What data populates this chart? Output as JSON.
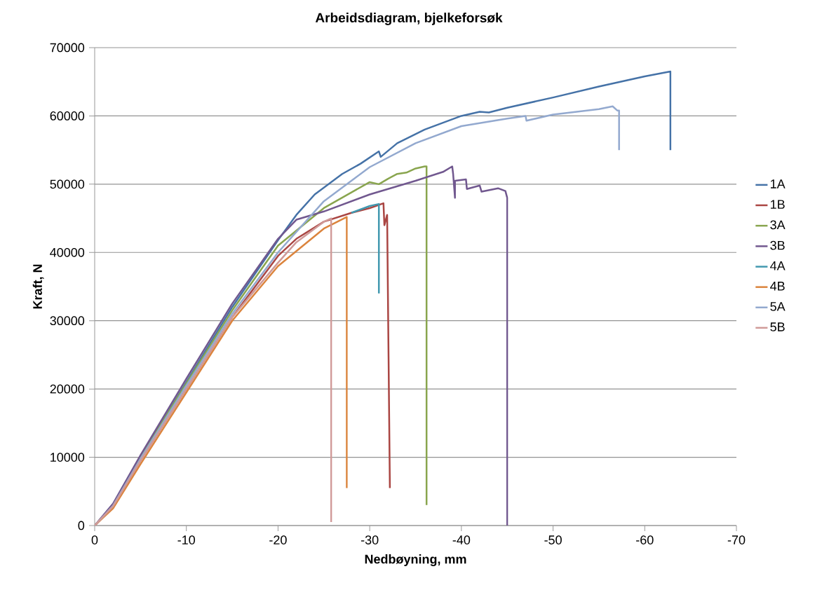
{
  "chart_data": {
    "type": "line",
    "title": "Arbeidsdiagram, bjelkeforsøk",
    "xlabel": "Nedbøyning, mm",
    "ylabel": "Kraft, N",
    "xlim": [
      0,
      -70
    ],
    "xticks": [
      0,
      -10,
      -20,
      -30,
      -40,
      -50,
      -60,
      -70
    ],
    "ylim": [
      0,
      70000
    ],
    "yticks": [
      0,
      10000,
      20000,
      30000,
      40000,
      50000,
      60000,
      70000
    ],
    "grid": "y",
    "legend": "right",
    "marker": "none",
    "line_style": "solid",
    "series": [
      {
        "name": "1A",
        "color": "#4572a7",
        "x": [
          0,
          -2,
          -5,
          -10,
          -15,
          -20,
          -22,
          -24,
          -25,
          -27,
          -29,
          -31,
          -31.2,
          -33,
          -36,
          -40,
          -42,
          -43,
          -45,
          -50,
          -55,
          -60,
          -62.8,
          -62.8
        ],
        "values": [
          0,
          3000,
          10000,
          21000,
          32000,
          41800,
          45500,
          48500,
          49500,
          51500,
          53000,
          54800,
          54000,
          56000,
          58000,
          60000,
          60600,
          60500,
          61200,
          62700,
          64300,
          65800,
          66500,
          55000
        ]
      },
      {
        "name": "1B",
        "color": "#aa4643",
        "x": [
          0,
          -2,
          -5,
          -10,
          -15,
          -20,
          -22,
          -25,
          -28,
          -30,
          -31.5,
          -31.6,
          -31.9,
          -32.2
        ],
        "values": [
          0,
          2800,
          9500,
          20000,
          30500,
          39500,
          42000,
          44500,
          45800,
          46500,
          47200,
          44000,
          45500,
          5500
        ]
      },
      {
        "name": "3A",
        "color": "#89a54e",
        "x": [
          0,
          -2,
          -5,
          -10,
          -15,
          -20,
          -25,
          -28,
          -30,
          -31,
          -32,
          -33,
          -34,
          -35,
          -36,
          -36.2,
          -36.2
        ],
        "values": [
          0,
          3000,
          10000,
          20800,
          31500,
          41000,
          46500,
          48800,
          50300,
          50000,
          50800,
          51500,
          51700,
          52300,
          52600,
          52600,
          3000
        ]
      },
      {
        "name": "3B",
        "color": "#71588f",
        "x": [
          0,
          -2,
          -5,
          -10,
          -15,
          -20,
          -22,
          -25,
          -30,
          -35,
          -38,
          -39,
          -39.1,
          -39.3,
          -39.3,
          -40.5,
          -40.6,
          -42,
          -42.2,
          -44,
          -44.8,
          -45,
          -45
        ],
        "values": [
          0,
          3200,
          10300,
          21500,
          32500,
          42000,
          44800,
          46000,
          48500,
          50500,
          51800,
          52600,
          51500,
          48000,
          50500,
          50700,
          49300,
          49800,
          48900,
          49400,
          49000,
          48000,
          0
        ]
      },
      {
        "name": "4A",
        "color": "#4198af",
        "x": [
          -28,
          -30,
          -31,
          -31
        ],
        "values": [
          45800,
          46800,
          47100,
          34000
        ]
      },
      {
        "name": "4B",
        "color": "#db843d",
        "x": [
          0,
          -2,
          -5,
          -10,
          -15,
          -20,
          -25,
          -27.5,
          -27.5
        ],
        "values": [
          0,
          2500,
          9000,
          19500,
          30000,
          38000,
          43500,
          45200,
          5500
        ]
      },
      {
        "name": "5A",
        "color": "#93a9cf",
        "x": [
          0,
          -2,
          -5,
          -10,
          -15,
          -20,
          -25,
          -30,
          -35,
          -40,
          -45,
          -47,
          -47.1,
          -50,
          -55,
          -56.5,
          -57,
          -57.2,
          -57.2
        ],
        "values": [
          0,
          2900,
          9800,
          20500,
          31000,
          40000,
          47500,
          52500,
          56000,
          58500,
          59600,
          60000,
          59300,
          60200,
          61000,
          61400,
          60800,
          60800,
          55000
        ]
      },
      {
        "name": "5B",
        "color": "#d09a98",
        "x": [
          0,
          -2,
          -5,
          -10,
          -15,
          -20,
          -22,
          -25,
          -25.8,
          -25.8
        ],
        "values": [
          0,
          2800,
          9500,
          20000,
          30500,
          38500,
          41500,
          44500,
          45000,
          500
        ]
      }
    ]
  }
}
